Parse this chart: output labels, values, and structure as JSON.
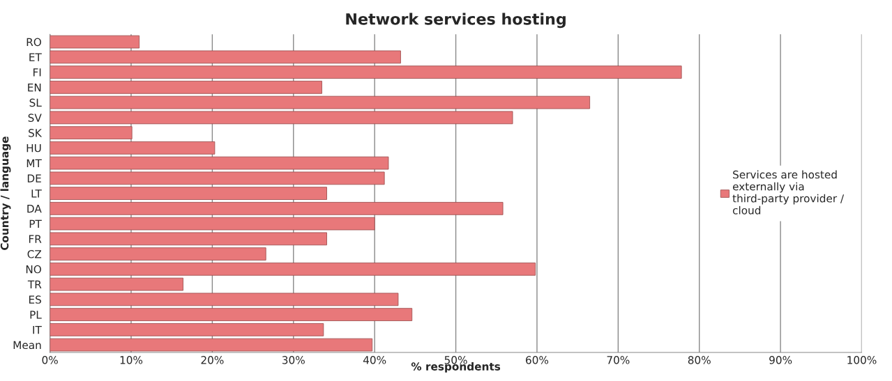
{
  "chart_data": {
    "type": "bar",
    "orientation": "horizontal",
    "title": "Network services hosting",
    "xlabel": "% respondents",
    "ylabel": "Country / language",
    "categories": [
      "RO",
      "ET",
      "FI",
      "EN",
      "SL",
      "SV",
      "SK",
      "HU",
      "MT",
      "DE",
      "LT",
      "DA",
      "PT",
      "FR",
      "CZ",
      "NO",
      "TR",
      "ES",
      "PL",
      "IT",
      "Mean"
    ],
    "series": [
      {
        "name": "Services are hosted externally via third-party provider / cloud",
        "color": "#e8787a",
        "values": [
          11.0,
          43.2,
          77.8,
          33.5,
          66.5,
          57.0,
          10.1,
          20.3,
          41.7,
          41.2,
          34.1,
          55.8,
          40.0,
          34.1,
          26.6,
          59.8,
          16.4,
          42.9,
          44.6,
          33.7,
          39.7
        ]
      }
    ],
    "xlim": [
      0,
      100
    ],
    "xticks": [
      {
        "value": 0,
        "label": "0%"
      },
      {
        "value": 10,
        "label": "10%"
      },
      {
        "value": 20,
        "label": "20%"
      },
      {
        "value": 30,
        "label": "30%"
      },
      {
        "value": 40,
        "label": "40%"
      },
      {
        "value": 50,
        "label": "50%"
      },
      {
        "value": 60,
        "label": "60%"
      },
      {
        "value": 70,
        "label": "70%"
      },
      {
        "value": 80,
        "label": "80%"
      },
      {
        "value": 90,
        "label": "90%"
      },
      {
        "value": 100,
        "label": "100%"
      }
    ],
    "grid": "x",
    "legend": "right"
  }
}
